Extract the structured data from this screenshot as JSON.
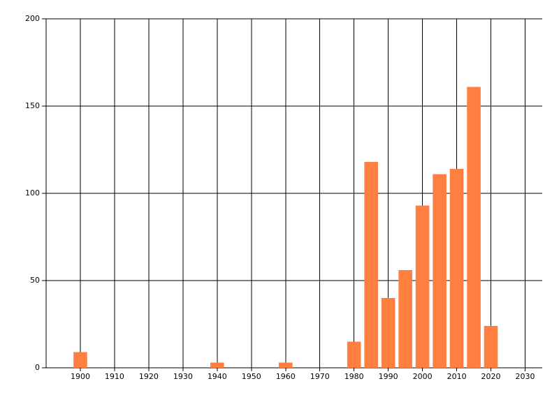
{
  "chart_data": {
    "type": "bar",
    "x": [
      1900,
      1940,
      1960,
      1980,
      1985,
      1990,
      1995,
      2000,
      2005,
      2010,
      2015,
      2020
    ],
    "values": [
      9,
      3,
      3,
      15,
      118,
      40,
      56,
      93,
      111,
      114,
      161,
      24
    ],
    "color": "#ff7f40",
    "xlim": [
      1890,
      2035
    ],
    "xticks": [
      1900,
      1910,
      1920,
      1930,
      1940,
      1950,
      1960,
      1970,
      1980,
      1990,
      2000,
      2010,
      2020,
      2030
    ],
    "ylim": [
      0,
      200
    ],
    "yticks": [
      0,
      50,
      100,
      150,
      200
    ],
    "grid": true
  }
}
